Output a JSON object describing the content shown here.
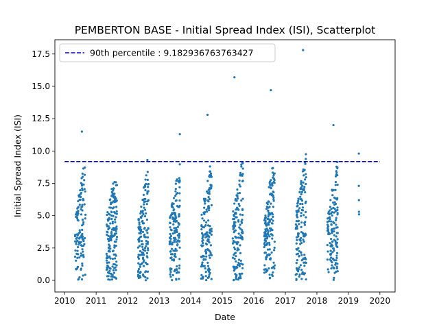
{
  "chart_data": {
    "type": "scatter",
    "title": "PEMBERTON BASE - Initial Spread Index (ISI), Scatterplot",
    "xlabel": "Date",
    "ylabel": "Initial Spread Index (ISI)",
    "xlim": [
      "2009-09-10",
      "2020-06-25"
    ],
    "ylim": [
      -0.9,
      18.6
    ],
    "xticks": [
      "2010",
      "2011",
      "2012",
      "2013",
      "2014",
      "2015",
      "2016",
      "2017",
      "2018",
      "2019",
      "2020"
    ],
    "yticks": [
      "0.0",
      "2.5",
      "5.0",
      "7.5",
      "10.0",
      "12.5",
      "15.0",
      "17.5"
    ],
    "grid": false,
    "legend_position": "top-left",
    "point_color": "#1f77b4",
    "reference_line": {
      "label": "90th percentile : 9.182936763763427",
      "value": 9.182936763763427,
      "color": "#0000cc",
      "style": "dashed"
    },
    "seasons": [
      {
        "year": 2010,
        "start": "2010-05-01",
        "end": "2010-08-31",
        "points": 130,
        "peak": 11.5
      },
      {
        "year": 2011,
        "start": "2011-05-01",
        "end": "2011-08-31",
        "points": 170,
        "peak": 7.6
      },
      {
        "year": 2012,
        "start": "2012-05-01",
        "end": "2012-08-31",
        "points": 150,
        "peak": 9.3
      },
      {
        "year": 2013,
        "start": "2013-05-01",
        "end": "2013-08-31",
        "points": 150,
        "peak": 11.3
      },
      {
        "year": 2014,
        "start": "2014-05-01",
        "end": "2014-08-31",
        "points": 150,
        "peak": 12.8
      },
      {
        "year": 2015,
        "start": "2015-05-01",
        "end": "2015-08-31",
        "points": 150,
        "peak": 15.7
      },
      {
        "year": 2016,
        "start": "2016-05-01",
        "end": "2016-08-31",
        "points": 160,
        "peak": 14.7
      },
      {
        "year": 2017,
        "start": "2017-05-01",
        "end": "2017-08-31",
        "points": 150,
        "peak": 17.8
      },
      {
        "year": 2018,
        "start": "2018-05-01",
        "end": "2018-08-31",
        "points": 140,
        "peak": 12.0
      }
    ],
    "extra_points": [
      {
        "date": "2019-05-02",
        "value": 9.8
      },
      {
        "date": "2019-05-02",
        "value": 7.3
      },
      {
        "date": "2019-05-03",
        "value": 6.2
      },
      {
        "date": "2019-05-03",
        "value": 5.3
      },
      {
        "date": "2019-05-04",
        "value": 5.1
      }
    ]
  }
}
